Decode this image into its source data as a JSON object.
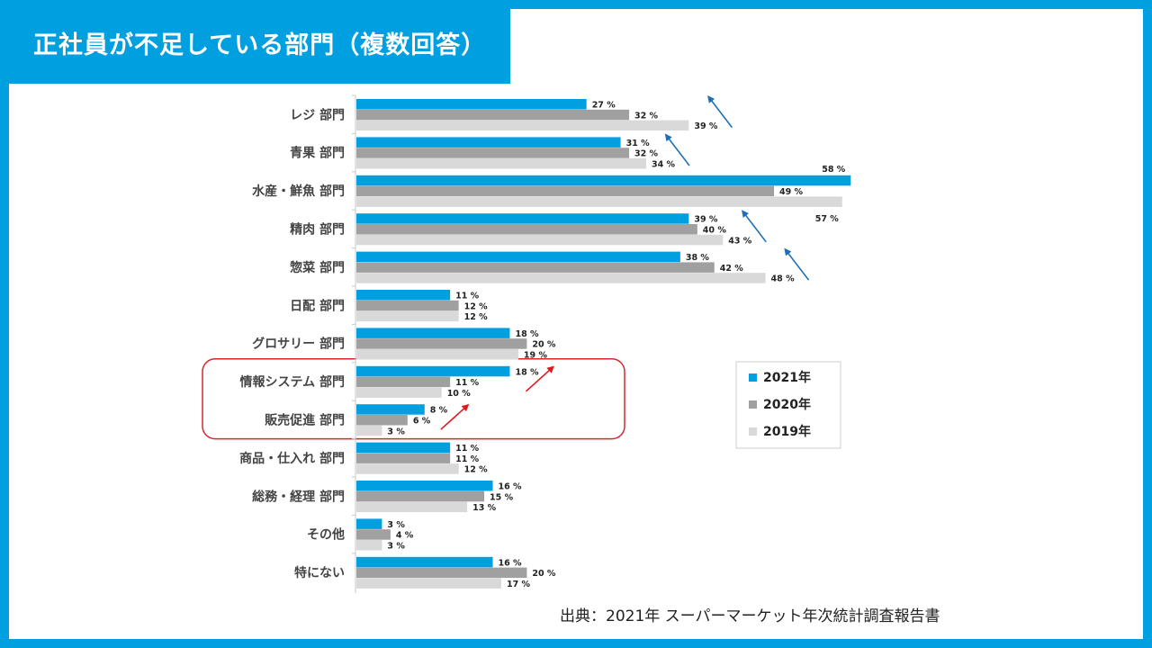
{
  "title": "正社員が不足している部門（複数回答）",
  "source": "出典：2021年 スーパーマーケット年次統計調査報告書",
  "chart_data": {
    "type": "bar",
    "orientation": "horizontal",
    "categories": [
      "レジ 部門",
      "青果 部門",
      "水産・鮮魚 部門",
      "精肉 部門",
      "惣菜 部門",
      "日配 部門",
      "グロサリー 部門",
      "情報システム 部門",
      "販売促進 部門",
      "商品・仕入れ 部門",
      "総務・経理 部門",
      "その他",
      "特にない"
    ],
    "series": [
      {
        "name": "2021年",
        "color": "#00a0e0",
        "values": [
          27,
          31,
          58,
          39,
          38,
          11,
          18,
          18,
          8,
          11,
          16,
          3,
          16
        ]
      },
      {
        "name": "2020年",
        "color": "#a0a0a0",
        "values": [
          32,
          32,
          49,
          40,
          42,
          12,
          20,
          11,
          6,
          11,
          15,
          4,
          20
        ]
      },
      {
        "name": "2019年",
        "color": "#d9d9d9",
        "values": [
          39,
          34,
          57,
          43,
          48,
          12,
          19,
          10,
          3,
          12,
          13,
          3,
          17
        ]
      }
    ],
    "value_suffix": " %",
    "xlim": [
      0,
      58
    ],
    "grid": false,
    "legend_position": "right",
    "highlighted_categories": [
      "情報システム 部門",
      "販売促進 部門"
    ],
    "annotation_colors": {
      "decline_arrow": "#1f6fb5",
      "increase_arrow": "#e0191f",
      "highlight_box": "#d9262b"
    }
  }
}
